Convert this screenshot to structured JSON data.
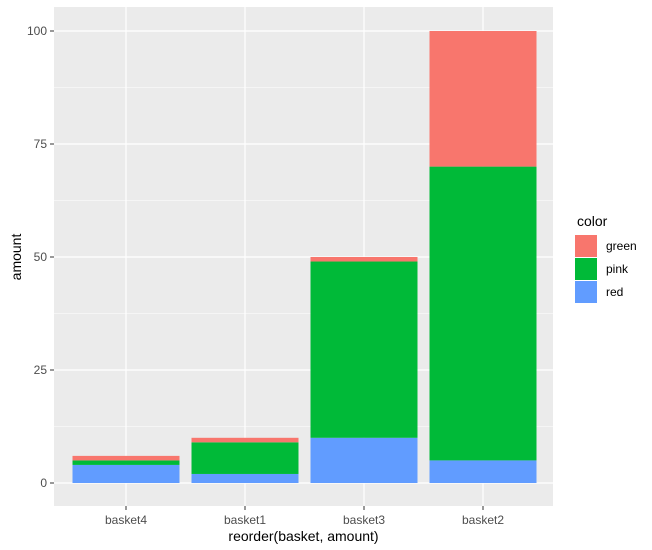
{
  "chart_data": {
    "type": "bar",
    "stacked": true,
    "title": "",
    "xlabel": "reorder(basket, amount)",
    "ylabel": "amount",
    "categories": [
      "basket4",
      "basket1",
      "basket3",
      "basket2"
    ],
    "series": [
      {
        "name": "red",
        "values": [
          4,
          2,
          10,
          5
        ]
      },
      {
        "name": "pink",
        "values": [
          1,
          7,
          39,
          65
        ]
      },
      {
        "name": "green",
        "values": [
          1,
          1,
          1,
          30
        ]
      }
    ],
    "ylim": [
      0,
      100
    ],
    "y_ticks": [
      "0",
      "25",
      "50",
      "75",
      "100"
    ],
    "grid": true,
    "legend": {
      "title": "color",
      "position": "right",
      "entries": [
        "green",
        "pink",
        "red"
      ]
    },
    "colors": {
      "green": "#F8766D",
      "pink": "#00BA38",
      "red": "#619CFF",
      "panel_bg": "#EBEBEB",
      "grid": "#ffffff"
    }
  }
}
